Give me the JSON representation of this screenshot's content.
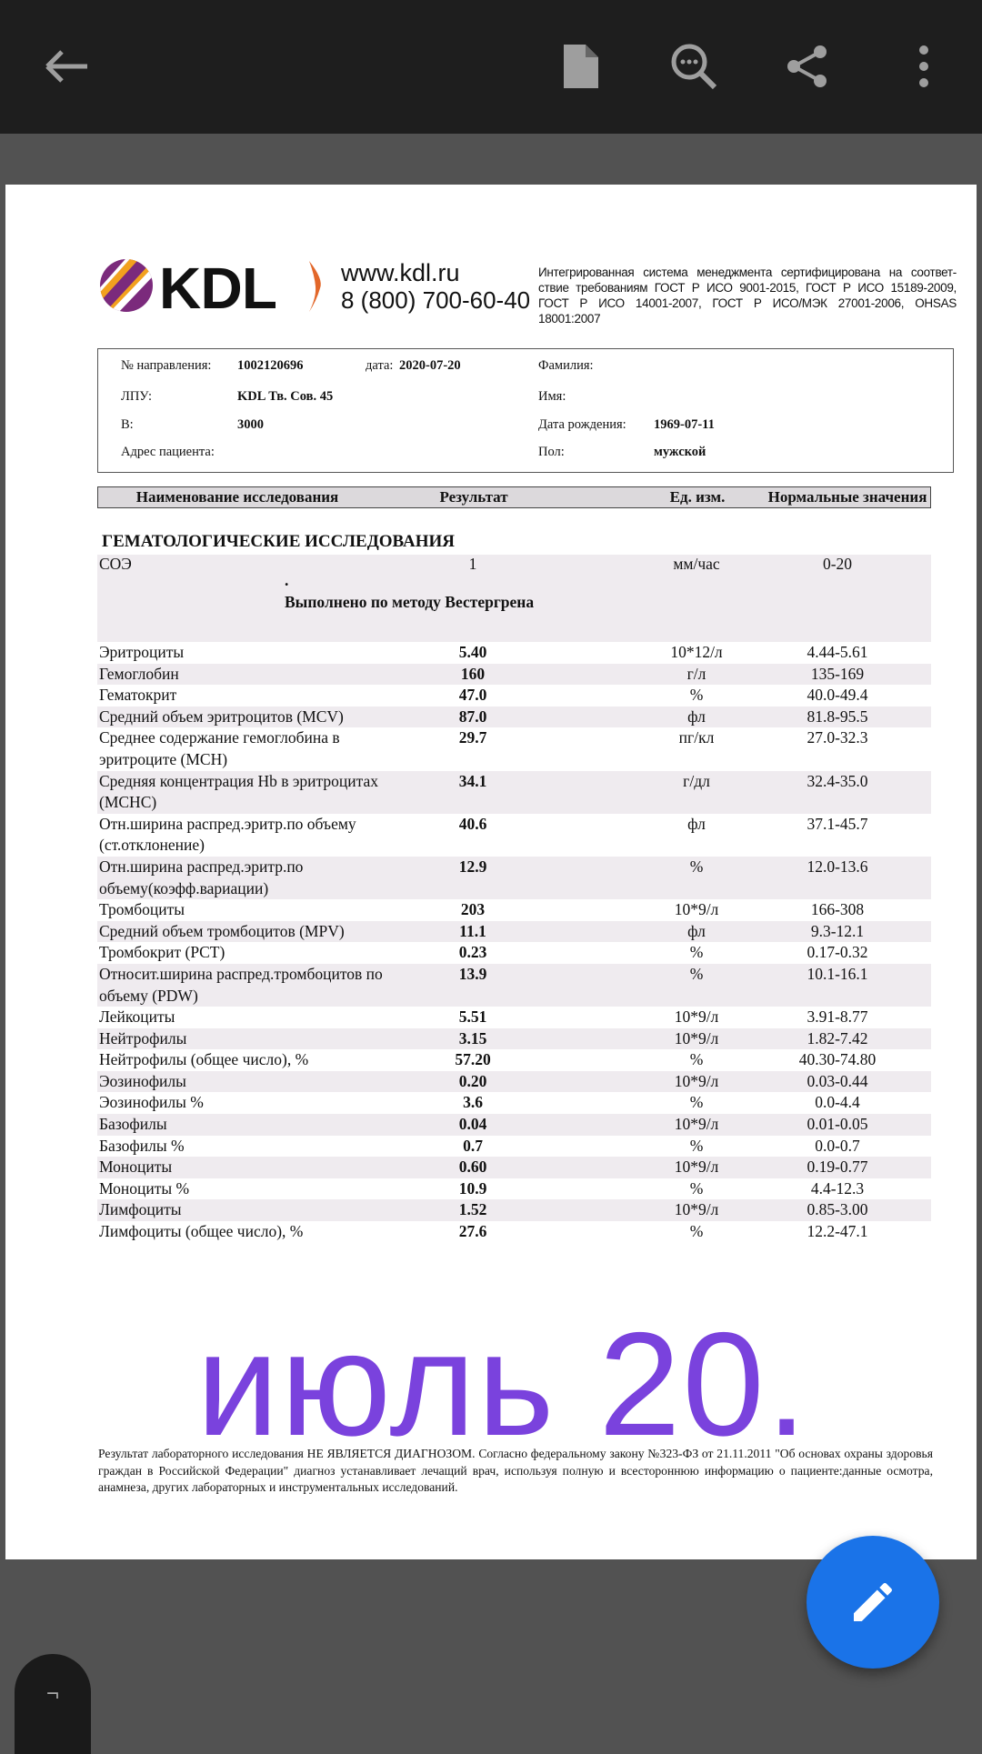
{
  "toolbar": {
    "icons": [
      "arrow-back-icon",
      "document-icon",
      "search-zoom-icon",
      "share-icon",
      "more-vert-icon"
    ]
  },
  "header": {
    "site": "www.kdl.ru",
    "phone": "8 (800) 700-60-40",
    "logo_text": "KDL",
    "certification": "Интегрированная система менеджмента сертифицирована на соответ-ствие требованиям ГОСТ Р ИСО 9001-2015, ГОСТ Р ИСО 15189-2009, ГОСТ Р ИСО 14001-2007, ГОСТ Р ИСО/МЭК 27001-2006, OHSAS 18001:2007"
  },
  "patient": {
    "referral_label": "№ направления:",
    "referral": "1002120696",
    "date_label": "дата:",
    "date": "2020-07-20",
    "lpu_label": "ЛПУ:",
    "lpu": "KDL Тв. Сов. 45",
    "b_label": "В:",
    "b": "3000",
    "address_label": "Адрес пациента:",
    "surname_label": "Фамилия:",
    "name_label": "Имя:",
    "dob_label": "Дата рождения:",
    "dob": "1969-07-11",
    "sex_label": "Пол:",
    "sex": "мужской"
  },
  "table": {
    "headers": [
      "Наименование исследования",
      "Результат",
      "Ед. изм.",
      "Нормальные значения"
    ],
    "section": "ГЕМАТОЛОГИЧЕСКИЕ ИССЛЕДОВАНИЯ",
    "soe": {
      "name": "СОЭ",
      "result": "1",
      "unit": "мм/час",
      "norm": "0-20",
      "dot": ".",
      "note": "Выполнено по методу Вестергрена"
    },
    "rows": [
      [
        "Эритроциты",
        "5.40",
        "10*12/л",
        "4.44-5.61"
      ],
      [
        "Гемоглобин",
        "160",
        "г/л",
        "135-169"
      ],
      [
        "Гематокрит",
        "47.0",
        "%",
        "40.0-49.4"
      ],
      [
        "Средний объем эритроцитов (MCV)",
        "87.0",
        "фл",
        "81.8-95.5"
      ],
      [
        "Среднее содержание гемоглобина в эритроците (MCH)",
        "29.7",
        "пг/кл",
        "27.0-32.3"
      ],
      [
        "Средняя концентрация Hb в эритроцитах (MCHC)",
        "34.1",
        "г/дл",
        "32.4-35.0"
      ],
      [
        "Отн.ширина распред.эритр.по объему (ст.отклонение)",
        "40.6",
        "фл",
        "37.1-45.7"
      ],
      [
        "Отн.ширина распред.эритр.по объему(коэфф.вариации)",
        "12.9",
        "%",
        "12.0-13.6"
      ],
      [
        "Тромбоциты",
        "203",
        "10*9/л",
        "166-308"
      ],
      [
        "Средний объем тромбоцитов (MPV)",
        "11.1",
        "фл",
        "9.3-12.1"
      ],
      [
        "Тромбокрит (PCT)",
        "0.23",
        "%",
        "0.17-0.32"
      ],
      [
        "Относит.ширина распред.тромбоцитов по объему (PDW)",
        "13.9",
        "%",
        "10.1-16.1"
      ],
      [
        "Лейкоциты",
        "5.51",
        "10*9/л",
        "3.91-8.77"
      ],
      [
        "Нейтрофилы",
        "3.15",
        "10*9/л",
        "1.82-7.42"
      ],
      [
        "Нейтрофилы (общее число), %",
        "57.20",
        "%",
        "40.30-74.80"
      ],
      [
        "Эозинофилы",
        "0.20",
        "10*9/л",
        "0.03-0.44"
      ],
      [
        "Эозинофилы %",
        "3.6",
        "%",
        "0.0-4.4"
      ],
      [
        "Базофилы",
        "0.04",
        "10*9/л",
        "0.01-0.05"
      ],
      [
        "Базофилы %",
        "0.7",
        "%",
        "0.0-0.7"
      ],
      [
        "Моноциты",
        "0.60",
        "10*9/л",
        "0.19-0.77"
      ],
      [
        "Моноциты %",
        "10.9",
        "%",
        "4.4-12.3"
      ],
      [
        "Лимфоциты",
        "1.52",
        "10*9/л",
        "0.85-3.00"
      ],
      [
        "Лимфоциты (общее число), %",
        "27.6",
        "%",
        "12.2-47.1"
      ]
    ]
  },
  "annotation": {
    "text": "июль 20.",
    "color": "#7a42dd"
  },
  "footer": "Результат лабораторного исследования НЕ ЯВЛЯЕТСЯ ДИАГНОЗОМ. Согласно федеральному закону №323-ФЗ от 21.11.2011 \"Об основах охраны здоровья граждан в Российской Федерации\" диагноз устанавливает лечащий врач, используя полную и всестороннюю информацию о пациенте:данные осмотра, анамнеза, других лабораторных и инструментальных исследований.",
  "page_tab": "¬",
  "colors": {
    "fab": "#1a73e8",
    "toolbar": "#1e1e1e",
    "background": "#525252"
  }
}
